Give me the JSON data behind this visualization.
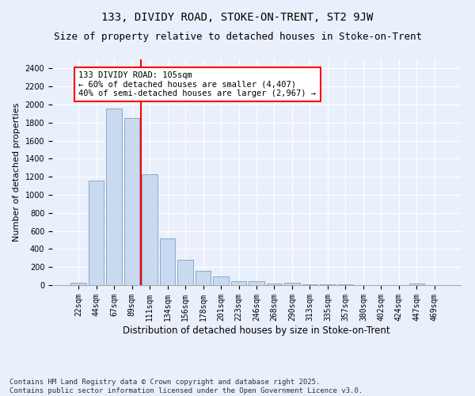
{
  "title1": "133, DIVIDY ROAD, STOKE-ON-TRENT, ST2 9JW",
  "title2": "Size of property relative to detached houses in Stoke-on-Trent",
  "xlabel": "Distribution of detached houses by size in Stoke-on-Trent",
  "ylabel": "Number of detached properties",
  "bar_labels": [
    "22sqm",
    "44sqm",
    "67sqm",
    "89sqm",
    "111sqm",
    "134sqm",
    "156sqm",
    "178sqm",
    "201sqm",
    "223sqm",
    "246sqm",
    "268sqm",
    "290sqm",
    "313sqm",
    "335sqm",
    "357sqm",
    "380sqm",
    "402sqm",
    "424sqm",
    "447sqm",
    "469sqm"
  ],
  "bar_values": [
    28,
    1160,
    1960,
    1850,
    1230,
    520,
    280,
    155,
    95,
    45,
    45,
    20,
    25,
    10,
    5,
    5,
    3,
    2,
    2,
    20,
    2
  ],
  "bar_color": "#c9d9ef",
  "bar_edge_color": "#7aa0c4",
  "vline_color": "red",
  "vline_x": 3.5,
  "annotation_text": "133 DIVIDY ROAD: 105sqm\n← 60% of detached houses are smaller (4,407)\n40% of semi-detached houses are larger (2,967) →",
  "annotation_box_color": "white",
  "annotation_box_edge": "red",
  "ylim": [
    0,
    2500
  ],
  "yticks": [
    0,
    200,
    400,
    600,
    800,
    1000,
    1200,
    1400,
    1600,
    1800,
    2000,
    2200,
    2400
  ],
  "background_color": "#eaf0fb",
  "footer_text": "Contains HM Land Registry data © Crown copyright and database right 2025.\nContains public sector information licensed under the Open Government Licence v3.0.",
  "title1_fontsize": 10,
  "title2_fontsize": 9,
  "xlabel_fontsize": 8.5,
  "ylabel_fontsize": 8,
  "tick_fontsize": 7,
  "annotation_fontsize": 7.5,
  "footer_fontsize": 6.5
}
